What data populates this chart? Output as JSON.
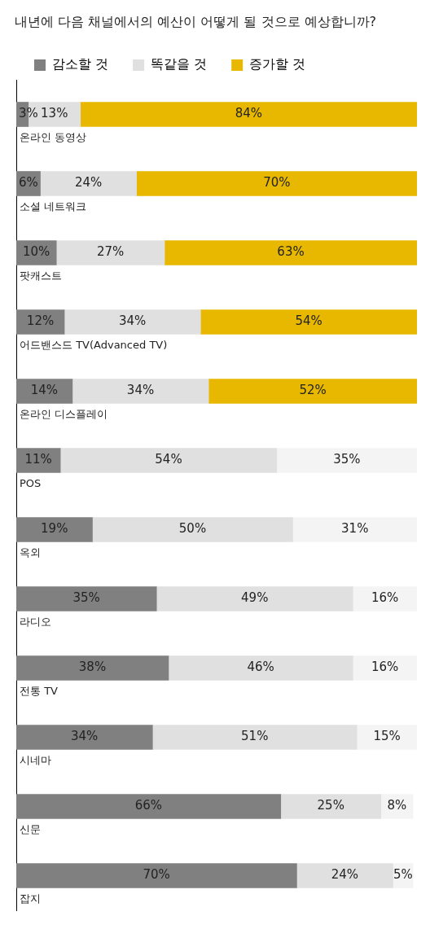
{
  "chart_data": {
    "type": "bar",
    "orientation": "horizontal",
    "stacked": true,
    "title": "내년에 다음 채널에서의 예산이 어떻게 될 것으로 예상합니까?",
    "categories": [
      "온라인 동영상",
      "소셜 네트워크",
      "팟캐스트",
      "어드밴스드 TV(Advanced TV)",
      "온라인 디스플레이",
      "POS",
      "옥외",
      "라디오",
      "전통 TV",
      "시네마",
      "신문",
      "잡지"
    ],
    "series": [
      {
        "name": "감소할 것",
        "color": "#808080",
        "values": [
          3,
          6,
          10,
          12,
          14,
          11,
          19,
          35,
          38,
          34,
          66,
          70
        ],
        "value_labels": [
          "3%",
          "6%",
          "10%",
          "12%",
          "14%",
          "11%",
          "19%",
          "35%",
          "38%",
          "34%",
          "66%",
          "70%"
        ]
      },
      {
        "name": "똑같을 것",
        "color": "#e0e0e0",
        "values": [
          13,
          24,
          27,
          34,
          34,
          54,
          50,
          49,
          46,
          51,
          25,
          24
        ],
        "value_labels": [
          "13%",
          "24%",
          "27%",
          "34%",
          "34%",
          "54%",
          "50%",
          "49%",
          "46%",
          "51%",
          "25%",
          "24%"
        ]
      },
      {
        "name": "증가할 것",
        "color": "#e8b800",
        "colors": [
          "#e8b800",
          "#e8b800",
          "#e8b800",
          "#e8b800",
          "#e8b800",
          "#f4f4f4",
          "#f4f4f4",
          "#f4f4f4",
          "#f4f4f4",
          "#f4f4f4",
          "#f4f4f4",
          "#f4f4f4"
        ],
        "values": [
          84,
          70,
          63,
          54,
          52,
          35,
          31,
          16,
          16,
          15,
          8,
          5
        ],
        "value_labels": [
          "84%",
          "70%",
          "63%",
          "54%",
          "52%",
          "35%",
          "31%",
          "16%",
          "16%",
          "15%",
          "8%",
          "5%"
        ]
      }
    ],
    "xlim": [
      0,
      100
    ],
    "tick_labels": false,
    "legend": "top left"
  }
}
